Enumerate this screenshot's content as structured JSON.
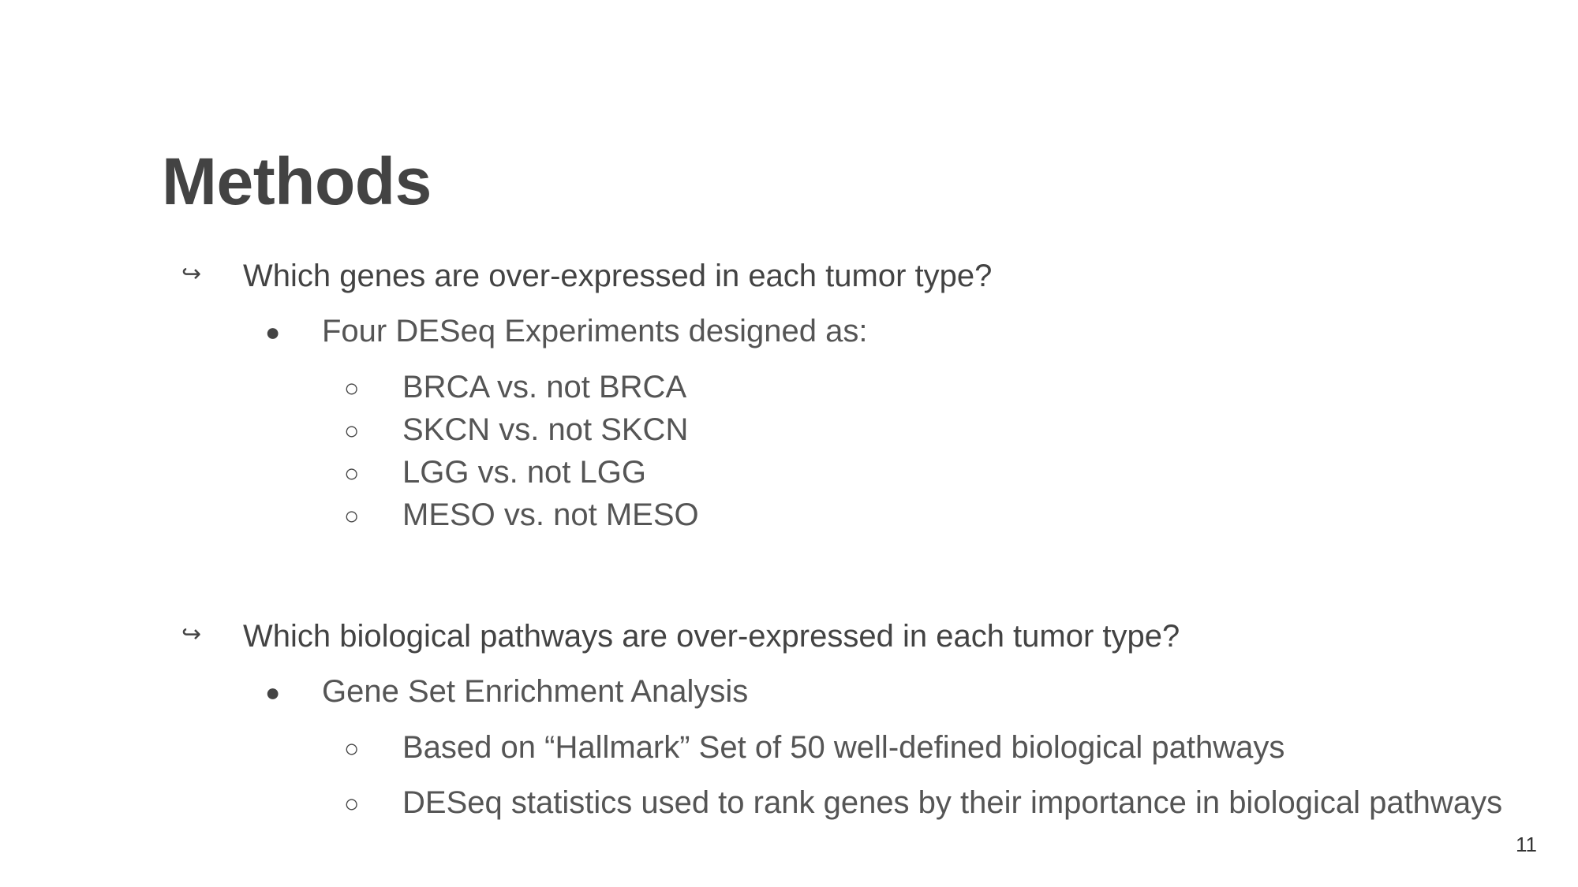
{
  "slide": {
    "title": "Methods",
    "page_number": "11",
    "sections": [
      {
        "arrow": "↪",
        "text": "Which genes are over-expressed in each tumor type?",
        "bullet": {
          "marker": "●",
          "text": "Four DESeq Experiments designed as:",
          "subitems": [
            {
              "marker": "○",
              "text": "BRCA vs. not BRCA"
            },
            {
              "marker": "○",
              "text": "SKCN vs. not SKCN"
            },
            {
              "marker": "○",
              "text": "LGG vs. not LGG"
            },
            {
              "marker": "○",
              "text": "MESO vs. not MESO"
            }
          ]
        }
      },
      {
        "arrow": "↪",
        "text": "Which biological pathways are over-expressed in each tumor type?",
        "bullet": {
          "marker": "●",
          "text": "Gene Set Enrichment Analysis",
          "subitems": [
            {
              "marker": "○",
              "text": "Based on “Hallmark” Set of 50 well-defined biological pathways"
            },
            {
              "marker": "○",
              "text": "DESeq statistics used to rank genes by their importance in biological pathways"
            }
          ]
        }
      }
    ]
  }
}
